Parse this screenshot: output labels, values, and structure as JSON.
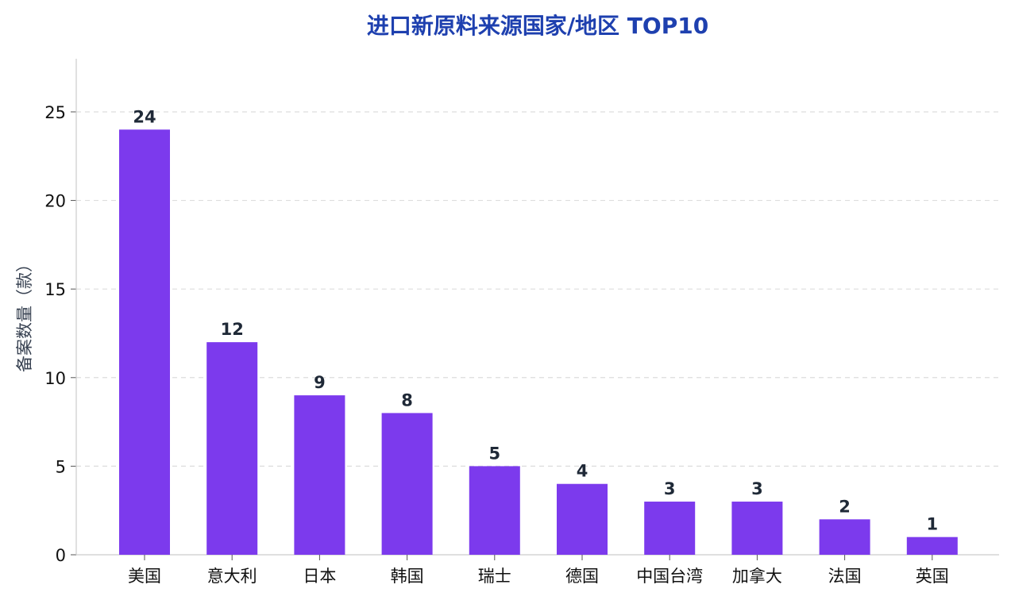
{
  "chart_data": {
    "type": "bar",
    "title": "进口新原料来源国家/地区 TOP10",
    "ylabel": "备案数量（款）",
    "xlabel": "",
    "categories": [
      "美国",
      "意大利",
      "日本",
      "韩国",
      "瑞士",
      "德国",
      "中国台湾",
      "加拿大",
      "法国",
      "英国"
    ],
    "values": [
      24,
      12,
      9,
      8,
      5,
      4,
      3,
      3,
      2,
      1
    ],
    "ylim": [
      0,
      28
    ],
    "yticks": [
      0,
      5,
      10,
      15,
      20,
      25
    ],
    "grid": "y-dashed",
    "legend": "none",
    "colors": {
      "bar": "#7c3aed",
      "title": "#1e40af",
      "value_label": "#1f2937",
      "ylabel": "#374151",
      "grid": "#dddddd",
      "axis": "#cccccc"
    }
  }
}
